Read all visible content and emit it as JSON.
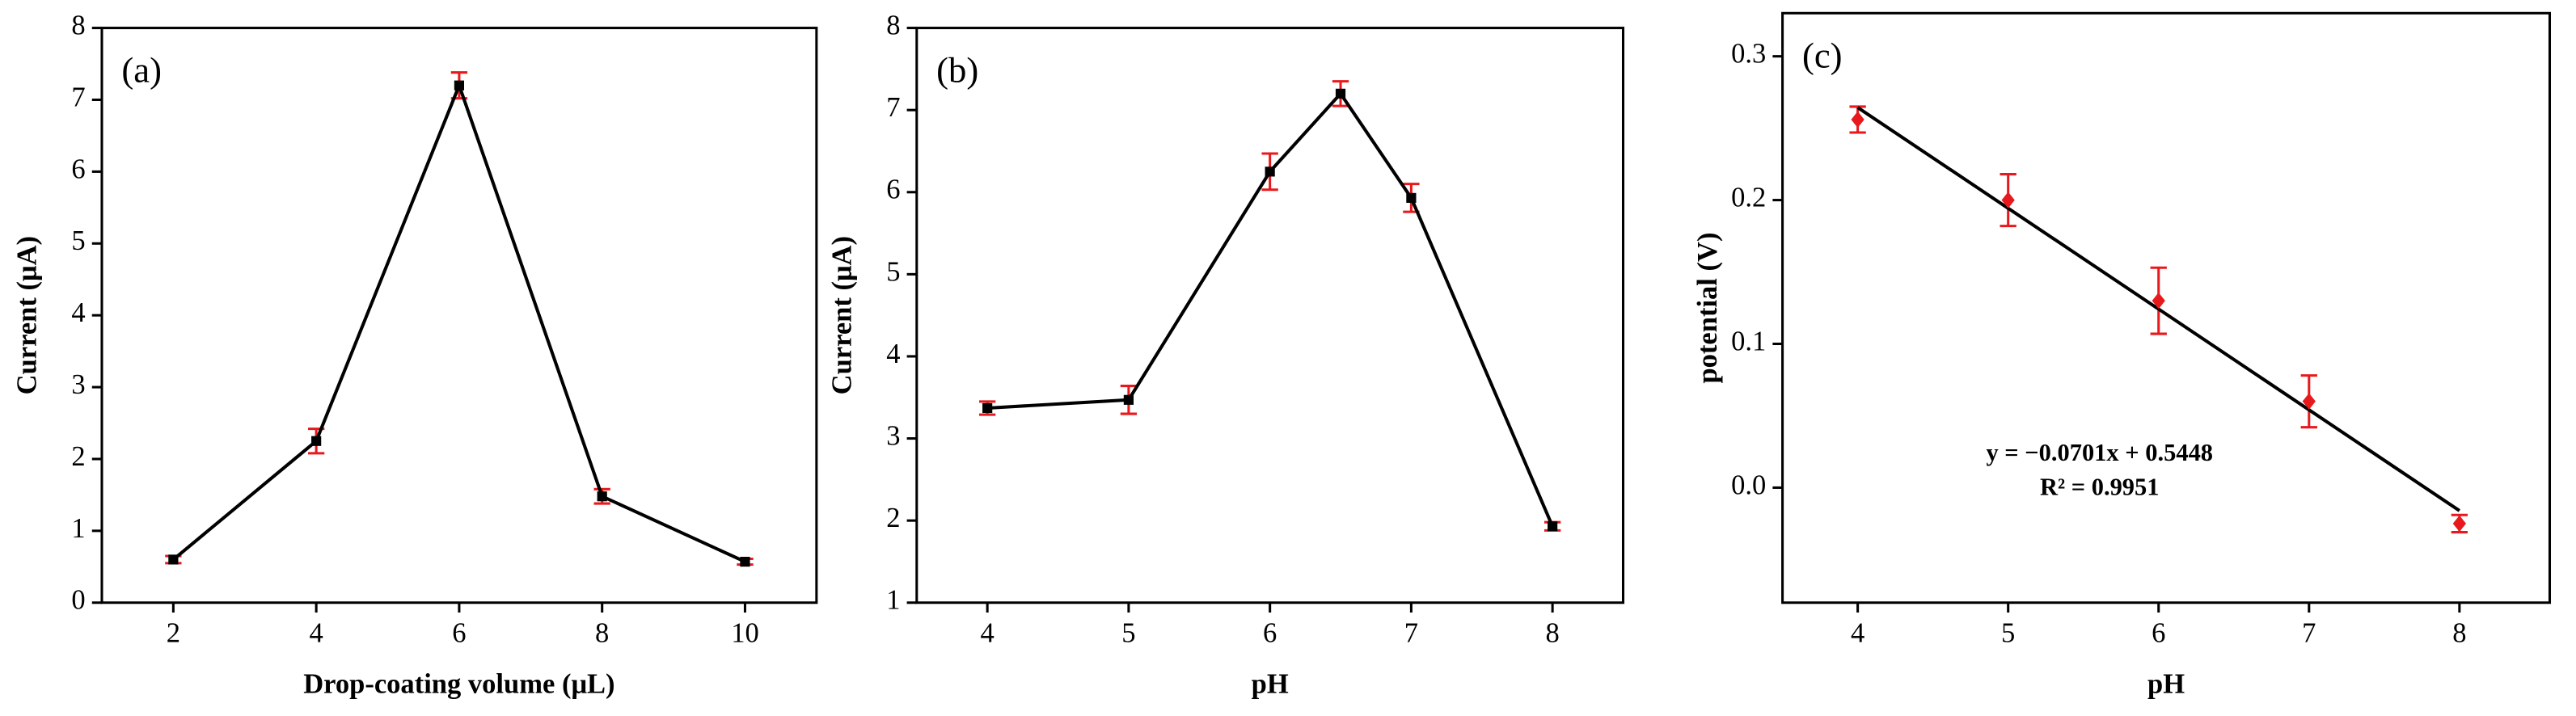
{
  "chart_data": [
    {
      "type": "line",
      "panel_label": "(a)",
      "x_label": "Drop-coating volume (μL)",
      "y_label": "Current (μA)",
      "x": [
        2,
        4,
        6,
        8,
        10
      ],
      "values": [
        0.6,
        2.25,
        7.2,
        1.48,
        0.57
      ],
      "errors": [
        0.05,
        0.17,
        0.18,
        0.1,
        0.04
      ],
      "xlim": [
        1,
        11
      ],
      "xticks": [
        2,
        4,
        6,
        8,
        10
      ],
      "ylim": [
        0,
        8
      ],
      "yticks": [
        0,
        1,
        2,
        3,
        4,
        5,
        6,
        7,
        8
      ],
      "line_color": "#000000",
      "marker_color": "#000000",
      "error_color": "#e8191c"
    },
    {
      "type": "line",
      "panel_label": "(b)",
      "x_label": "pH",
      "y_label": "Current (μA)",
      "x": [
        4,
        5,
        6,
        6.5,
        7,
        8
      ],
      "values": [
        3.37,
        3.47,
        6.25,
        7.2,
        5.93,
        1.93
      ],
      "errors": [
        0.08,
        0.17,
        0.22,
        0.15,
        0.17,
        0.05
      ],
      "xlim": [
        3.5,
        8.5
      ],
      "xticks": [
        4,
        5,
        6,
        7,
        8
      ],
      "ylim": [
        1,
        8
      ],
      "yticks": [
        1,
        2,
        3,
        4,
        5,
        6,
        7,
        8
      ],
      "line_color": "#000000",
      "marker_color": "#000000",
      "error_color": "#e8191c"
    },
    {
      "type": "scatter",
      "panel_label": "(c)",
      "x_label": "pH",
      "y_label": "potential (V)",
      "x": [
        4,
        5,
        6,
        7,
        8
      ],
      "values": [
        0.256,
        0.2,
        0.13,
        0.06,
        -0.025
      ],
      "errors": [
        0.009,
        0.018,
        0.023,
        0.018,
        0.006
      ],
      "xlim": [
        3.5,
        8.6
      ],
      "xticks": [
        4,
        5,
        6,
        7,
        8
      ],
      "ylim": [
        -0.08,
        0.33
      ],
      "yticks": [
        {
          "value": 0,
          "label": "0.0"
        },
        0.1,
        0.2,
        0.3
      ],
      "fit": {
        "slope": -0.0701,
        "intercept": 0.5448,
        "label": "y = −0.0701x + 0.5448",
        "r2_label": "R² = 0.9951"
      },
      "line_color": "#000000",
      "marker_color": "#e8191c",
      "error_color": "#e8191c"
    }
  ]
}
